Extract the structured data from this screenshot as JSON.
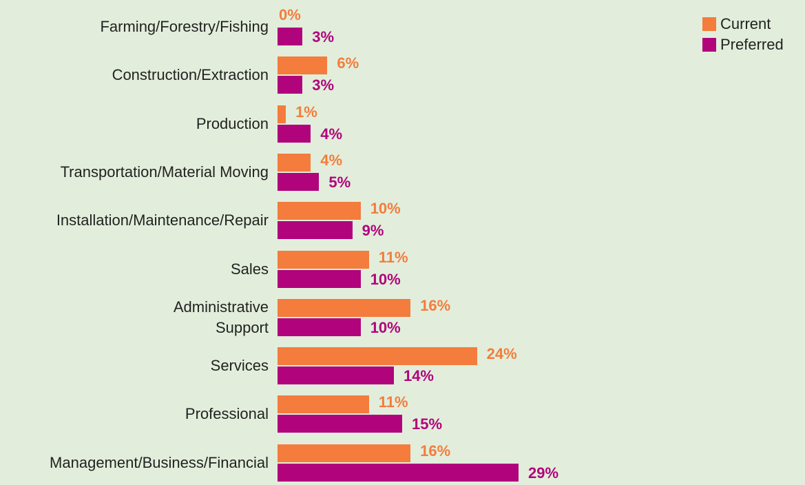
{
  "chart_data": {
    "type": "bar",
    "orientation": "horizontal",
    "categories": [
      "Farming/Forestry/Fishing",
      "Construction/Extraction",
      "Production",
      "Transportation/Material Moving",
      "Installation/Maintenance/Repair",
      "Sales",
      "Administrative\nSupport",
      "Services",
      "Professional",
      "Management/Business/Financial"
    ],
    "series": [
      {
        "name": "Current",
        "color": "#f47c3c",
        "values": [
          0,
          6,
          1,
          4,
          10,
          11,
          16,
          24,
          11,
          16
        ],
        "value_labels": [
          "0%",
          "6%",
          "1%",
          "4%",
          "10%",
          "11%",
          "16%",
          "24%",
          "11%",
          "16%"
        ]
      },
      {
        "name": "Preferred",
        "color": "#b0037c",
        "values": [
          3,
          3,
          4,
          5,
          9,
          10,
          10,
          14,
          15,
          29
        ],
        "value_labels": [
          "3%",
          "3%",
          "4%",
          "5%",
          "9%",
          "10%",
          "10%",
          "14%",
          "15%",
          "29%"
        ]
      }
    ],
    "legend": "top-right"
  }
}
